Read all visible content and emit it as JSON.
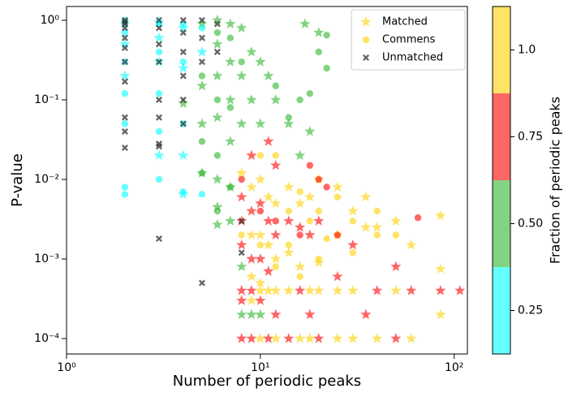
{
  "chart_data": {
    "type": "scatter",
    "xlabel": "Number of periodic peaks",
    "ylabel": "P-value",
    "xscale": "log",
    "yscale": "log",
    "xlim": [
      1,
      117
    ],
    "ylim": [
      6.4e-05,
      1.49
    ],
    "xticks": [
      {
        "value": 1,
        "label": "10⁰"
      },
      {
        "value": 10,
        "label": "10¹"
      },
      {
        "value": 100,
        "label": "10²"
      }
    ],
    "yticks": [
      {
        "value": 0.0001,
        "label": "10⁻⁴"
      },
      {
        "value": 0.001,
        "label": "10⁻³"
      },
      {
        "value": 0.01,
        "label": "10⁻²"
      },
      {
        "value": 0.1,
        "label": "10⁻¹"
      },
      {
        "value": 1,
        "label": "10⁰"
      }
    ],
    "legend": "upper right",
    "colorbar": {
      "label": "Fraction of periodic peaks",
      "boundaries": [
        0.125,
        0.375,
        0.625,
        0.875,
        1.125
      ],
      "colors": [
        "#00ffff",
        "#2eb82e",
        "#ff0000",
        "#ffd000"
      ],
      "ticks": [
        0.25,
        {
          "value": 0.5,
          "label": "0.50"
        },
        0.75,
        {
          "value": 1,
          "label": "1.0"
        }
      ]
    },
    "series": [
      {
        "name": "Matched",
        "marker": "star",
        "color": "#ffd000",
        "x": [
          2,
          2,
          2,
          3,
          3,
          3,
          3,
          4,
          4,
          4,
          4,
          4,
          5,
          5,
          5,
          5,
          5,
          6,
          6,
          6,
          6,
          6,
          6,
          6,
          7,
          7,
          7,
          7,
          7,
          7,
          8,
          8,
          8,
          8,
          8,
          8,
          8,
          8,
          8,
          8,
          8,
          8,
          9,
          9,
          9,
          9,
          9,
          9,
          9,
          9,
          9,
          9,
          9,
          9,
          10,
          10,
          10,
          10,
          10,
          10,
          10,
          10,
          10,
          10,
          10,
          11,
          11,
          11,
          11,
          11,
          11,
          11,
          11,
          12,
          12,
          12,
          12,
          12,
          12,
          12,
          12,
          14,
          14,
          14,
          14,
          14,
          14,
          16,
          16,
          16,
          16,
          16,
          16,
          17,
          18,
          18,
          18,
          18,
          18,
          18,
          20,
          20,
          20,
          20,
          20,
          20,
          25,
          25,
          25,
          25,
          25,
          30,
          30,
          30,
          30,
          35,
          35,
          35,
          40,
          40,
          40,
          50,
          50,
          50,
          50,
          60,
          60,
          60,
          85,
          85,
          85,
          85,
          107
        ],
        "y": [
          0.9,
          0.5,
          0.2,
          0.95,
          0.6,
          0.3,
          0.02,
          0.8,
          0.25,
          0.09,
          0.02,
          0.0065,
          0.9,
          0.4,
          0.15,
          0.05,
          0.012,
          1,
          0.5,
          0.2,
          0.06,
          0.01,
          0.0045,
          0.0027,
          0.9,
          0.3,
          0.1,
          0.03,
          0.008,
          0.003,
          0.8,
          0.2,
          0.05,
          0.012,
          0.006,
          0.003,
          0.0015,
          0.0008,
          0.0004,
          0.0003,
          0.0002,
          0.0001,
          0.4,
          0.1,
          0.02,
          0.008,
          0.004,
          0.002,
          0.001,
          0.0006,
          0.0004,
          0.0003,
          0.0002,
          0.0001,
          0.3,
          0.05,
          0.01,
          0.005,
          0.002,
          0.001,
          0.0005,
          0.0004,
          0.0003,
          0.0002,
          0.0001,
          0.2,
          0.03,
          0.006,
          0.003,
          0.0015,
          0.0007,
          0.0004,
          0.0001,
          0.1,
          0.015,
          0.005,
          0.002,
          0.001,
          0.0004,
          0.0002,
          0.0001,
          0.05,
          0.008,
          0.003,
          0.0012,
          0.0004,
          0.0001,
          0.02,
          0.005,
          0.0025,
          0.0008,
          0.0004,
          0.0001,
          0.9,
          0.04,
          0.006,
          0.002,
          0.0004,
          0.0002,
          0.0001,
          0.7,
          0.01,
          0.003,
          0.0009,
          0.0004,
          0.0001,
          0.008,
          0.002,
          0.0006,
          0.0004,
          0.0001,
          0.004,
          0.0015,
          0.0004,
          0.0001,
          0.006,
          0.0025,
          0.0002,
          0.0025,
          0.0004,
          0.0001,
          0.003,
          0.0008,
          0.0004,
          0.0001,
          0.0015,
          0.0004,
          0.0001,
          0.0035,
          0.00075,
          0.0004,
          0.0002,
          0.0004
        ],
        "fraction": [
          0.25,
          0.25,
          0.25,
          0.25,
          0.25,
          0.25,
          0.25,
          0.25,
          0.25,
          0.5,
          0.25,
          0.25,
          0.5,
          0.25,
          0.5,
          0.5,
          0.5,
          0.5,
          0.5,
          0.5,
          0.5,
          0.5,
          0.5,
          0.5,
          0.5,
          0.5,
          0.5,
          0.5,
          0.5,
          0.5,
          0.5,
          0.5,
          0.5,
          1,
          0.75,
          0.75,
          0.75,
          0.5,
          0.75,
          0.75,
          0.5,
          0.75,
          0.5,
          0.5,
          0.75,
          1,
          0.75,
          1,
          0.75,
          1,
          0.75,
          1,
          0.5,
          0.75,
          0.5,
          0.5,
          1,
          0.75,
          1,
          0.75,
          1,
          1,
          0.75,
          0.5,
          1,
          0.5,
          0.75,
          1,
          0.75,
          1,
          0.75,
          1,
          0.75,
          0.5,
          0.75,
          1,
          0.75,
          1,
          1,
          0.75,
          1,
          0.5,
          1,
          0.75,
          1,
          1,
          0.75,
          0.5,
          1,
          0.75,
          1,
          0.75,
          1,
          0.5,
          0.5,
          1,
          0.75,
          1,
          0.75,
          1,
          0.5,
          1,
          0.75,
          1,
          1,
          0.75,
          1,
          1,
          0.75,
          1,
          1,
          1,
          0.75,
          1,
          1,
          1,
          1,
          0.75,
          1,
          0.75,
          1,
          1,
          0.75,
          1,
          0.75,
          1,
          0.75,
          1,
          1,
          1,
          0.75,
          1,
          0.75
        ]
      },
      {
        "name": "Commens",
        "marker": "circle",
        "color": "#ffd000",
        "x": [
          2,
          2,
          2,
          2,
          2,
          2,
          2,
          3,
          3,
          3,
          3,
          3,
          4,
          4,
          4,
          4,
          5,
          5,
          5,
          5,
          5,
          6,
          6,
          6,
          6,
          7,
          7,
          7,
          8,
          8,
          8,
          10,
          10,
          10,
          12,
          12,
          12,
          12,
          14,
          14,
          14,
          16,
          16,
          16,
          16,
          18,
          18,
          18,
          20,
          20,
          20,
          20,
          22,
          22,
          22,
          22,
          25,
          25,
          30,
          30,
          40,
          40,
          50,
          65
        ],
        "y": [
          1,
          0.7,
          0.3,
          0.12,
          0.05,
          0.008,
          0.0065,
          0.9,
          0.4,
          0.12,
          0.04,
          0.01,
          0.9,
          0.3,
          0.05,
          0.007,
          0.8,
          0.2,
          0.03,
          0.012,
          0.0065,
          0.7,
          0.1,
          0.02,
          0.004,
          0.6,
          0.08,
          0.008,
          0.3,
          0.01,
          0.002,
          0.02,
          0.004,
          0.0015,
          0.15,
          0.02,
          0.003,
          0.0008,
          0.06,
          0.004,
          0.0015,
          0.1,
          0.007,
          0.002,
          0.0006,
          0.12,
          0.015,
          0.003,
          0.4,
          0.01,
          0.004,
          0.001,
          0.65,
          0.25,
          0.008,
          0.0018,
          0.006,
          0.002,
          0.003,
          0.0012,
          0.004,
          0.002,
          0.002,
          0.0033
        ],
        "fraction": [
          0.25,
          0.25,
          0.25,
          0.25,
          0.25,
          0.25,
          0.25,
          0.25,
          0.25,
          0.25,
          0.25,
          0.25,
          0.25,
          0.25,
          0.25,
          0.25,
          0.25,
          0.5,
          0.5,
          0.5,
          0.25,
          0.5,
          0.5,
          0.5,
          0.5,
          0.5,
          0.5,
          0.5,
          0.5,
          0.75,
          1,
          1,
          0.75,
          1,
          0.5,
          1,
          0.75,
          1,
          0.5,
          1,
          1,
          0.5,
          1,
          0.75,
          1,
          0.5,
          0.75,
          1,
          0.5,
          0.75,
          1,
          1,
          0.5,
          0.5,
          0.75,
          1,
          1,
          0.75,
          1,
          1,
          1,
          1,
          1,
          0.75
        ]
      },
      {
        "name": "Unmatched",
        "marker": "x",
        "color": "#333333",
        "x": [
          2,
          2,
          2,
          2,
          2,
          2,
          2,
          2,
          2,
          2,
          2,
          3,
          3,
          3,
          3,
          3,
          3,
          3,
          3,
          3,
          4,
          4,
          4,
          4,
          4,
          4,
          5,
          5,
          5,
          5,
          6,
          6,
          8,
          8
        ],
        "y": [
          1,
          0.95,
          0.9,
          0.8,
          0.6,
          0.45,
          0.3,
          0.17,
          0.06,
          0.04,
          0.025,
          1,
          0.8,
          0.5,
          0.3,
          0.1,
          0.06,
          0.028,
          0.026,
          0.0018,
          1,
          0.7,
          0.4,
          0.2,
          0.1,
          0.05,
          1,
          0.6,
          0.3,
          0.0005,
          0.9,
          0.4,
          0.003,
          0.0012
        ]
      }
    ]
  }
}
